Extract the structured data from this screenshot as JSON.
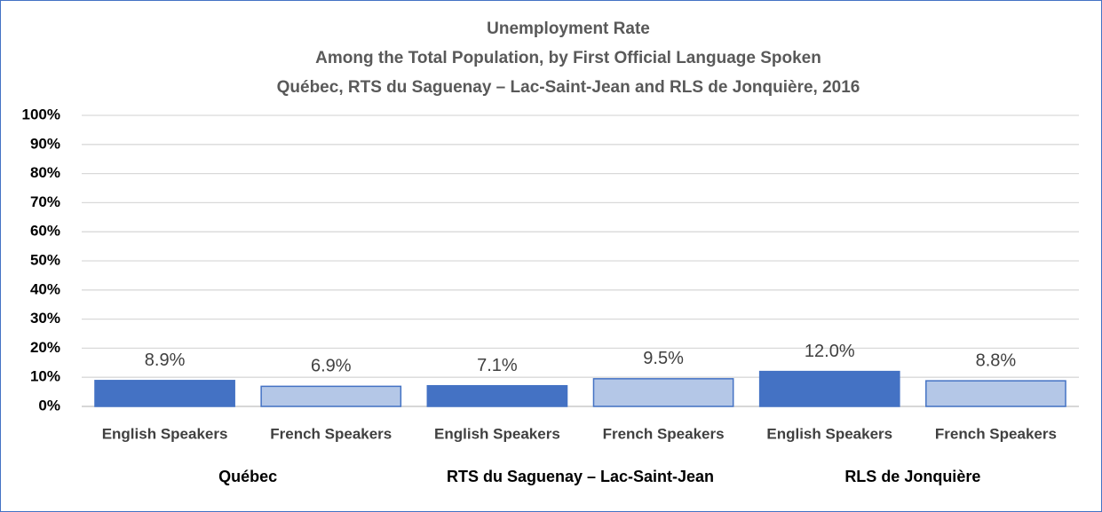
{
  "chart_data": {
    "type": "bar",
    "title": "Unemployment Rate",
    "subtitle": [
      "Among the Total Population, by First Official Language Spoken",
      "Québec, RTS du Saguenay – Lac-Saint-Jean and RLS de Jonquière, 2016"
    ],
    "colors": [
      "#4472c4",
      "#b4c7e7"
    ],
    "groups": [
      {
        "name": "Québec",
        "categories": [
          "English Speakers",
          "French Speakers"
        ],
        "values": [
          8.9,
          6.9
        ],
        "value_labels": [
          "8.9%",
          "6.9%"
        ]
      },
      {
        "name": "RTS du Saguenay – Lac-Saint-Jean",
        "categories": [
          "English Speakers",
          "French Speakers"
        ],
        "values": [
          7.1,
          9.5
        ],
        "value_labels": [
          "7.1%",
          "9.5%"
        ]
      },
      {
        "name": "RLS de Jonquière",
        "categories": [
          "English Speakers",
          "French Speakers"
        ],
        "values": [
          12.0,
          8.8
        ],
        "value_labels": [
          "12.0%",
          "8.8%"
        ]
      }
    ],
    "ylim": [
      0,
      100
    ],
    "yticks": [
      {
        "value": 0,
        "label": "0%"
      },
      {
        "value": 10,
        "label": "10%"
      },
      {
        "value": 20,
        "label": "20%"
      },
      {
        "value": 30,
        "label": "30%"
      },
      {
        "value": 40,
        "label": "40%"
      },
      {
        "value": 50,
        "label": "50%"
      },
      {
        "value": 60,
        "label": "60%"
      },
      {
        "value": 70,
        "label": "70%"
      },
      {
        "value": 80,
        "label": "80%"
      },
      {
        "value": 90,
        "label": "90%"
      },
      {
        "value": 100,
        "label": "100%"
      }
    ],
    "grid": true
  }
}
